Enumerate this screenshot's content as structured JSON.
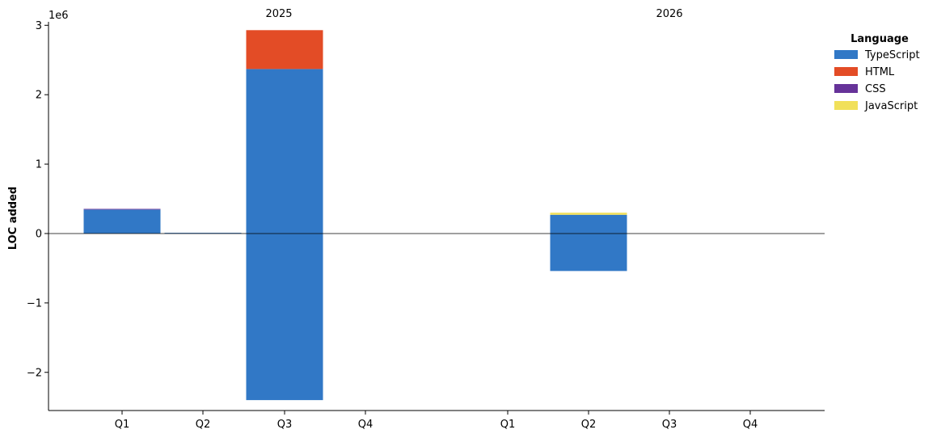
{
  "chart_data": {
    "type": "bar",
    "stacked": true,
    "ylabel": "LOC added",
    "y_offset_label": "1e6",
    "ylim": [
      -2550000,
      3050000
    ],
    "y_ticks": [
      -2,
      -1,
      0,
      1,
      2,
      3
    ],
    "y_tick_labels": [
      "−2",
      "−1",
      "0",
      "1",
      "2",
      "3"
    ],
    "groups": [
      {
        "label": "2025",
        "categories": [
          "Q1",
          "Q2",
          "Q3",
          "Q4"
        ]
      },
      {
        "label": "2026",
        "categories": [
          "Q1",
          "Q2",
          "Q3",
          "Q4"
        ]
      }
    ],
    "legend": {
      "title": "Language",
      "position": "top-right"
    },
    "series": [
      {
        "name": "TypeScript",
        "color": "#3178c6",
        "values": [
          [
            345000,
            0
          ],
          [
            10000,
            0
          ],
          [
            2370000,
            -2400000
          ],
          [
            0,
            0
          ],
          [
            0,
            0
          ],
          [
            270000,
            -540000
          ],
          [
            0,
            0
          ],
          [
            0,
            0
          ]
        ]
      },
      {
        "name": "HTML",
        "color": "#e34c26",
        "values": [
          [
            0,
            0
          ],
          [
            0,
            0
          ],
          [
            560000,
            0
          ],
          [
            0,
            0
          ],
          [
            0,
            0
          ],
          [
            0,
            0
          ],
          [
            0,
            0
          ],
          [
            0,
            0
          ]
        ]
      },
      {
        "name": "CSS",
        "color": "#663399",
        "values": [
          [
            10000,
            0
          ],
          [
            0,
            0
          ],
          [
            0,
            0
          ],
          [
            0,
            0
          ],
          [
            0,
            0
          ],
          [
            0,
            0
          ],
          [
            0,
            0
          ],
          [
            0,
            0
          ]
        ]
      },
      {
        "name": "JavaScript",
        "color": "#f1e05a",
        "values": [
          [
            0,
            0
          ],
          [
            0,
            0
          ],
          [
            0,
            0
          ],
          [
            0,
            0
          ],
          [
            0,
            0
          ],
          [
            30000,
            0
          ],
          [
            0,
            0
          ],
          [
            0,
            0
          ]
        ]
      }
    ]
  }
}
